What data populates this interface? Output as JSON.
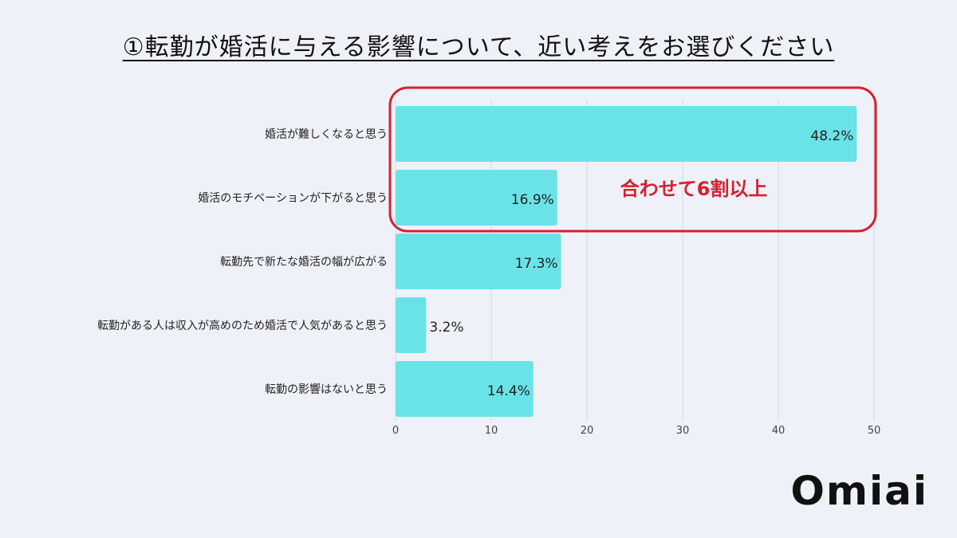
{
  "title": "①転勤が婚活に与える影響について、近い考えをお選びください",
  "logo": "Omiai",
  "callout": {
    "text": "合わせて6割以上",
    "color": "#d6202f"
  },
  "colors": {
    "bar": "#6ae3e8",
    "grid": "#d3d8e2",
    "callout": "#d6202f"
  },
  "chart_data": {
    "type": "bar",
    "orientation": "horizontal",
    "categories": [
      "婚活が難しくなると思う",
      "婚活のモチベーションが下がると思う",
      "転勤先で新たな婚活の幅が広がる",
      "転勤がある人は収入が高めのため婚活で人気があると思う",
      "転勤の影響はないと思う"
    ],
    "values": [
      48.2,
      16.9,
      17.3,
      3.2,
      14.4
    ],
    "value_labels": [
      "48.2%",
      "16.9%",
      "17.3%",
      "3.2%",
      "14.4%"
    ],
    "xlim": [
      0,
      50
    ],
    "xticks": [
      "0",
      "10",
      "20",
      "30",
      "40",
      "50"
    ],
    "grid": true
  }
}
